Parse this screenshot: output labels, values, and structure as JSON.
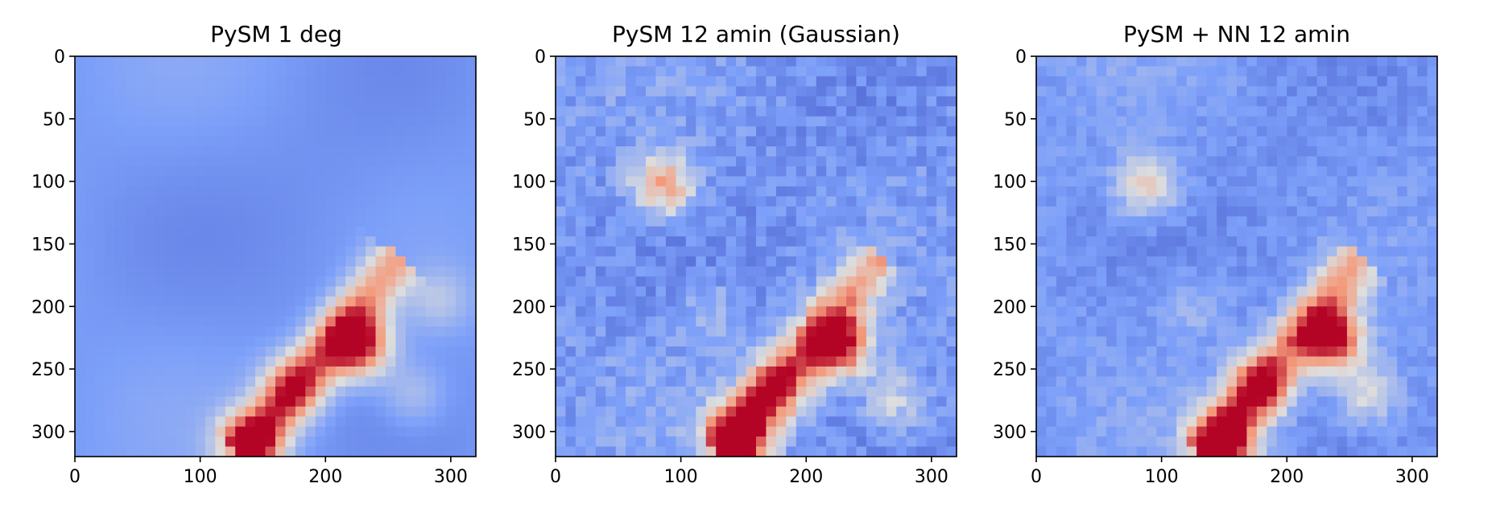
{
  "chart_data": [
    {
      "type": "heatmap",
      "title": "PySM 1 deg",
      "colormap": "coolwarm",
      "xlim": [
        0,
        320
      ],
      "ylim": [
        320,
        0
      ],
      "xticks": [
        0,
        100,
        200,
        300
      ],
      "yticks": [
        0,
        50,
        100,
        150,
        200,
        250,
        300
      ],
      "noise": 0.0,
      "features": [
        {
          "x": 225,
          "y": 230,
          "value": 1.0
        },
        {
          "x": 140,
          "y": 310,
          "value": 0.75
        },
        {
          "x": 175,
          "y": 265,
          "value": 0.5
        },
        {
          "x": 270,
          "y": 270,
          "value": 0.2
        },
        {
          "x": 290,
          "y": 195,
          "value": 0.2
        }
      ]
    },
    {
      "type": "heatmap",
      "title": "PySM 12 amin (Gaussian)",
      "colormap": "coolwarm",
      "xlim": [
        0,
        320
      ],
      "ylim": [
        320,
        0
      ],
      "xticks": [
        0,
        100,
        200,
        300
      ],
      "yticks": [
        0,
        50,
        100,
        150,
        200,
        250,
        300
      ],
      "noise": 0.15,
      "features": [
        {
          "x": 225,
          "y": 230,
          "value": 1.0
        },
        {
          "x": 145,
          "y": 305,
          "value": 0.95
        },
        {
          "x": 175,
          "y": 265,
          "value": 0.6
        },
        {
          "x": 270,
          "y": 275,
          "value": 0.3
        },
        {
          "x": 86,
          "y": 103,
          "value": 0.6
        },
        {
          "x": 123,
          "y": 203,
          "value": 0.15
        }
      ]
    },
    {
      "type": "heatmap",
      "title": "PySM + NN 12 amin",
      "colormap": "coolwarm",
      "xlim": [
        0,
        320
      ],
      "ylim": [
        320,
        0
      ],
      "xticks": [
        0,
        100,
        200,
        300
      ],
      "yticks": [
        0,
        50,
        100,
        150,
        200,
        250,
        300
      ],
      "noise": 0.1,
      "features": [
        {
          "x": 235,
          "y": 225,
          "value": 1.0
        },
        {
          "x": 150,
          "y": 310,
          "value": 0.9
        },
        {
          "x": 180,
          "y": 265,
          "value": 0.6
        },
        {
          "x": 265,
          "y": 270,
          "value": 0.35
        },
        {
          "x": 88,
          "y": 103,
          "value": 0.45
        },
        {
          "x": 125,
          "y": 200,
          "value": 0.15
        }
      ]
    }
  ]
}
